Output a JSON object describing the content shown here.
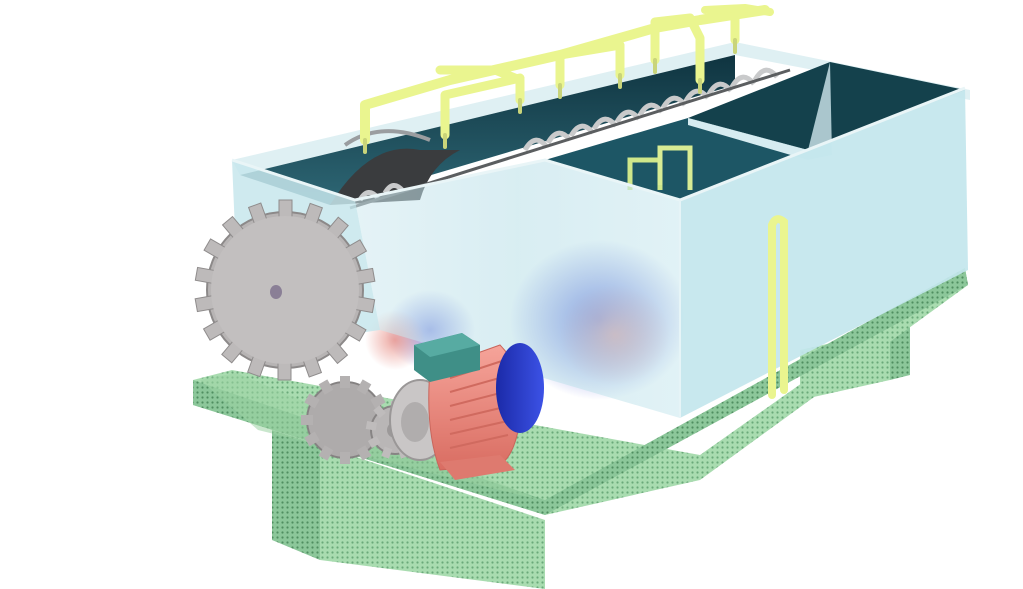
{
  "scene": {
    "subject": "screw-conveyor-washing-tank-machine",
    "colors": {
      "background": "#ffffff",
      "base_frame": "#9fd3a6",
      "base_frame_dark": "#7fb88a",
      "tank_glass": "#bfe4ec",
      "tank_inner": "#1e4f5c",
      "spray_pipe": "#e9f590",
      "gear": "#b9b6b6",
      "motor_body": "#f08c80",
      "motor_top": "#3d8e86",
      "motor_fan_cover": "#2a3cc8"
    },
    "icons": {
      "large_gear": "gear-icon",
      "small_gear": "gear-icon",
      "motor": "motor-icon",
      "screw": "screw-conveyor-icon",
      "pipe": "pipe-icon"
    }
  }
}
